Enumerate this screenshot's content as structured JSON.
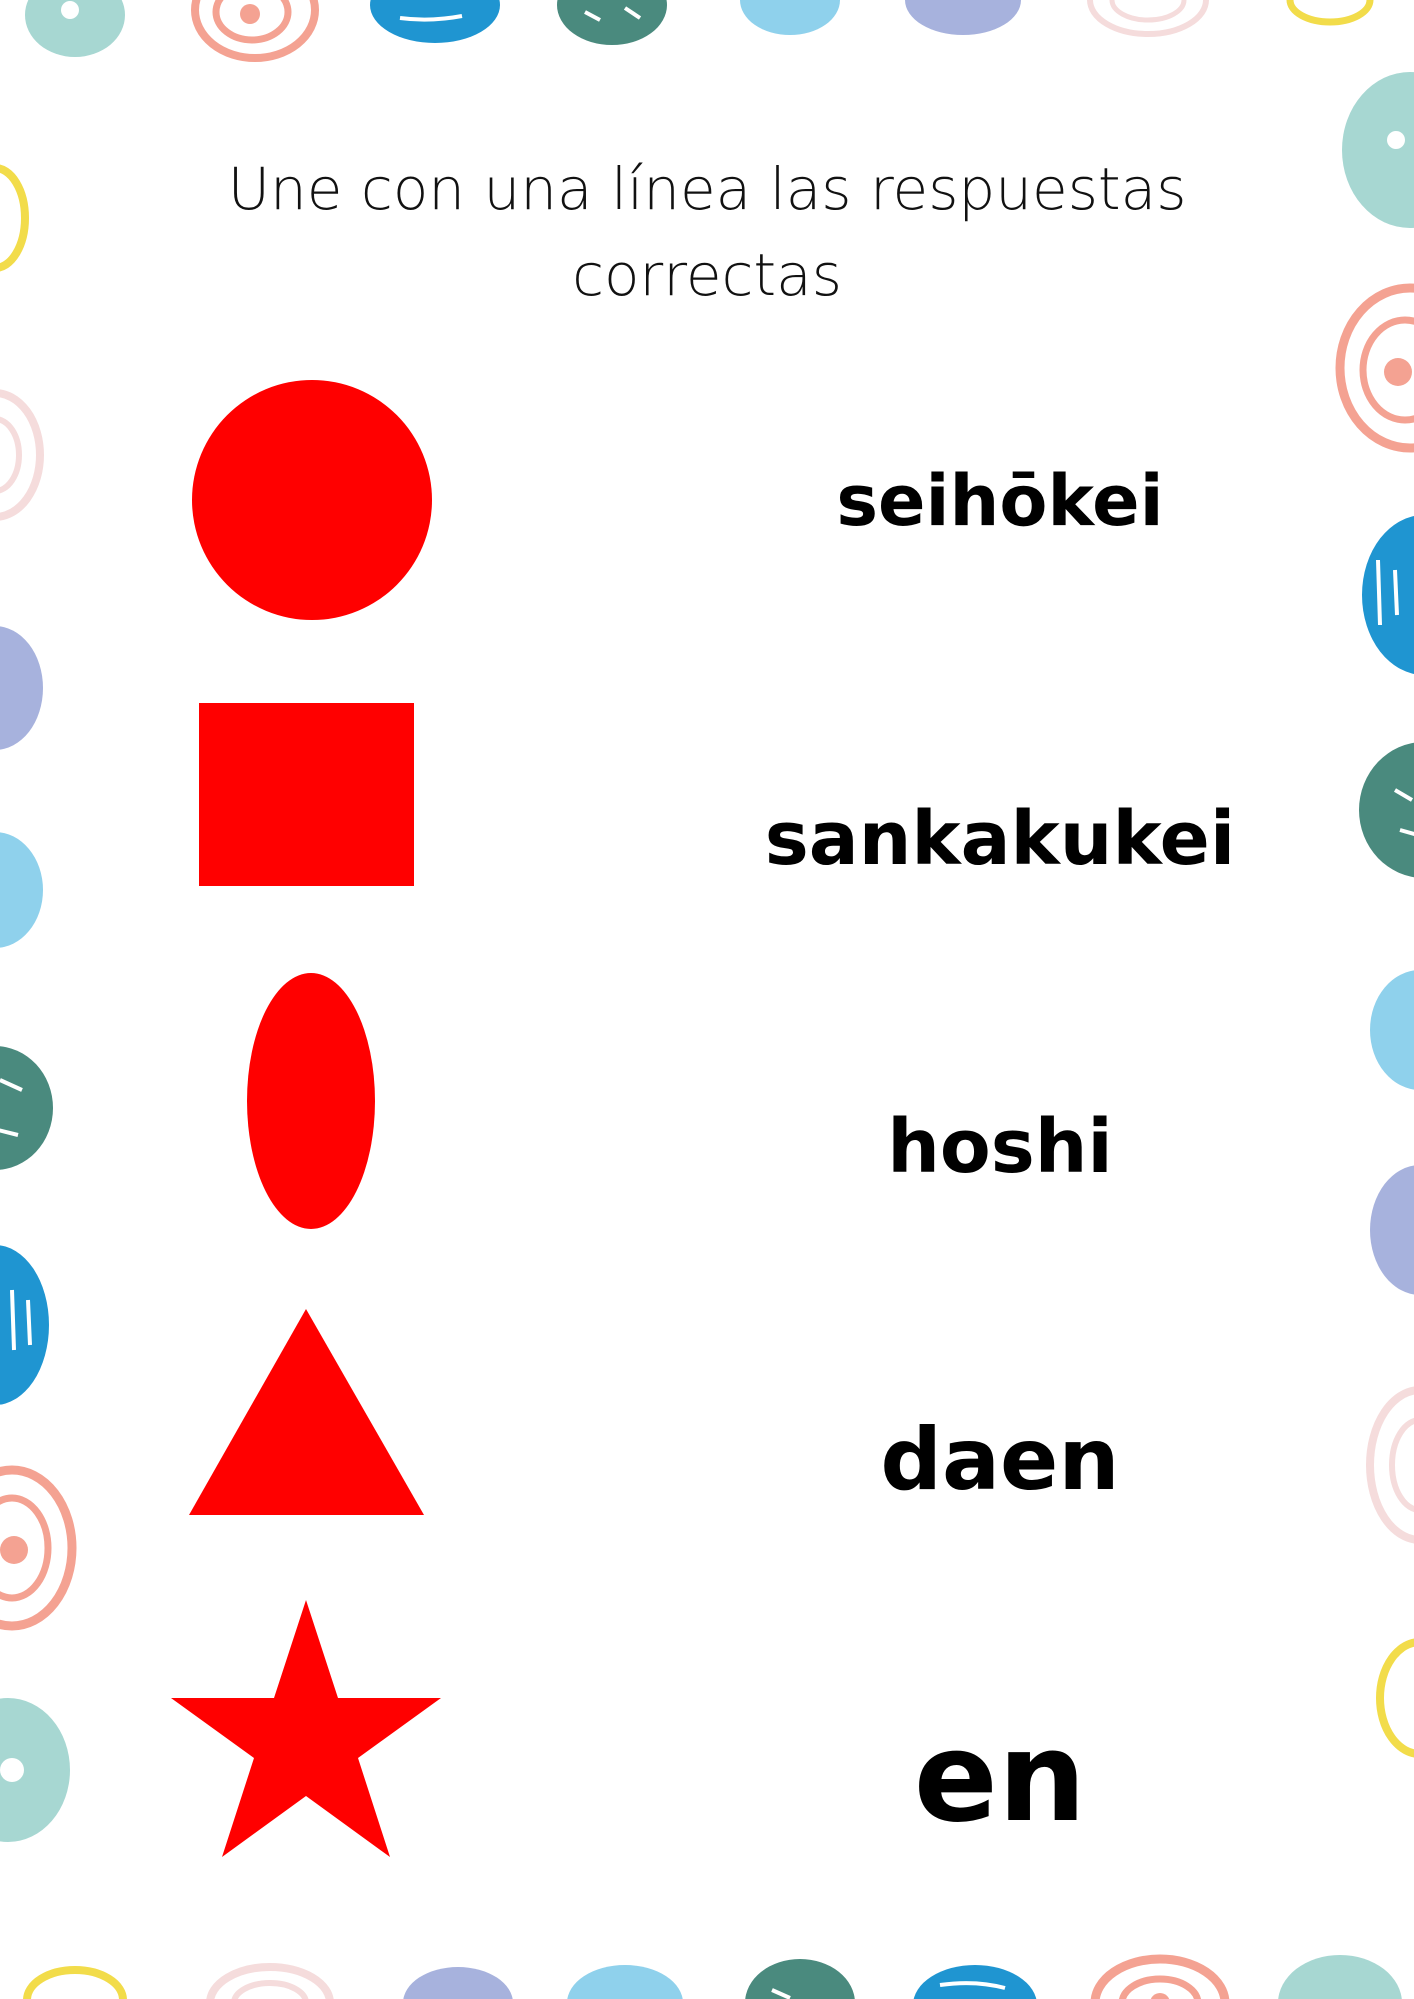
{
  "instruction": "Une con una línea las respuestas correctas",
  "shapes": [
    {
      "name": "circle",
      "color": "#ff0000"
    },
    {
      "name": "square",
      "color": "#ff0000"
    },
    {
      "name": "ellipse",
      "color": "#ff0000"
    },
    {
      "name": "triangle",
      "color": "#ff0000"
    },
    {
      "name": "star",
      "color": "#ff0000"
    }
  ],
  "words": [
    "seihōkei",
    "sankakukei",
    "hoshi",
    "daen",
    "en"
  ],
  "decoration_colors": [
    "#a7d7d2",
    "#f4a292",
    "#1f95d1",
    "#4a8a7e",
    "#8fd1ec",
    "#a7b2dd",
    "#f5dcdc",
    "#f2dc4a"
  ]
}
